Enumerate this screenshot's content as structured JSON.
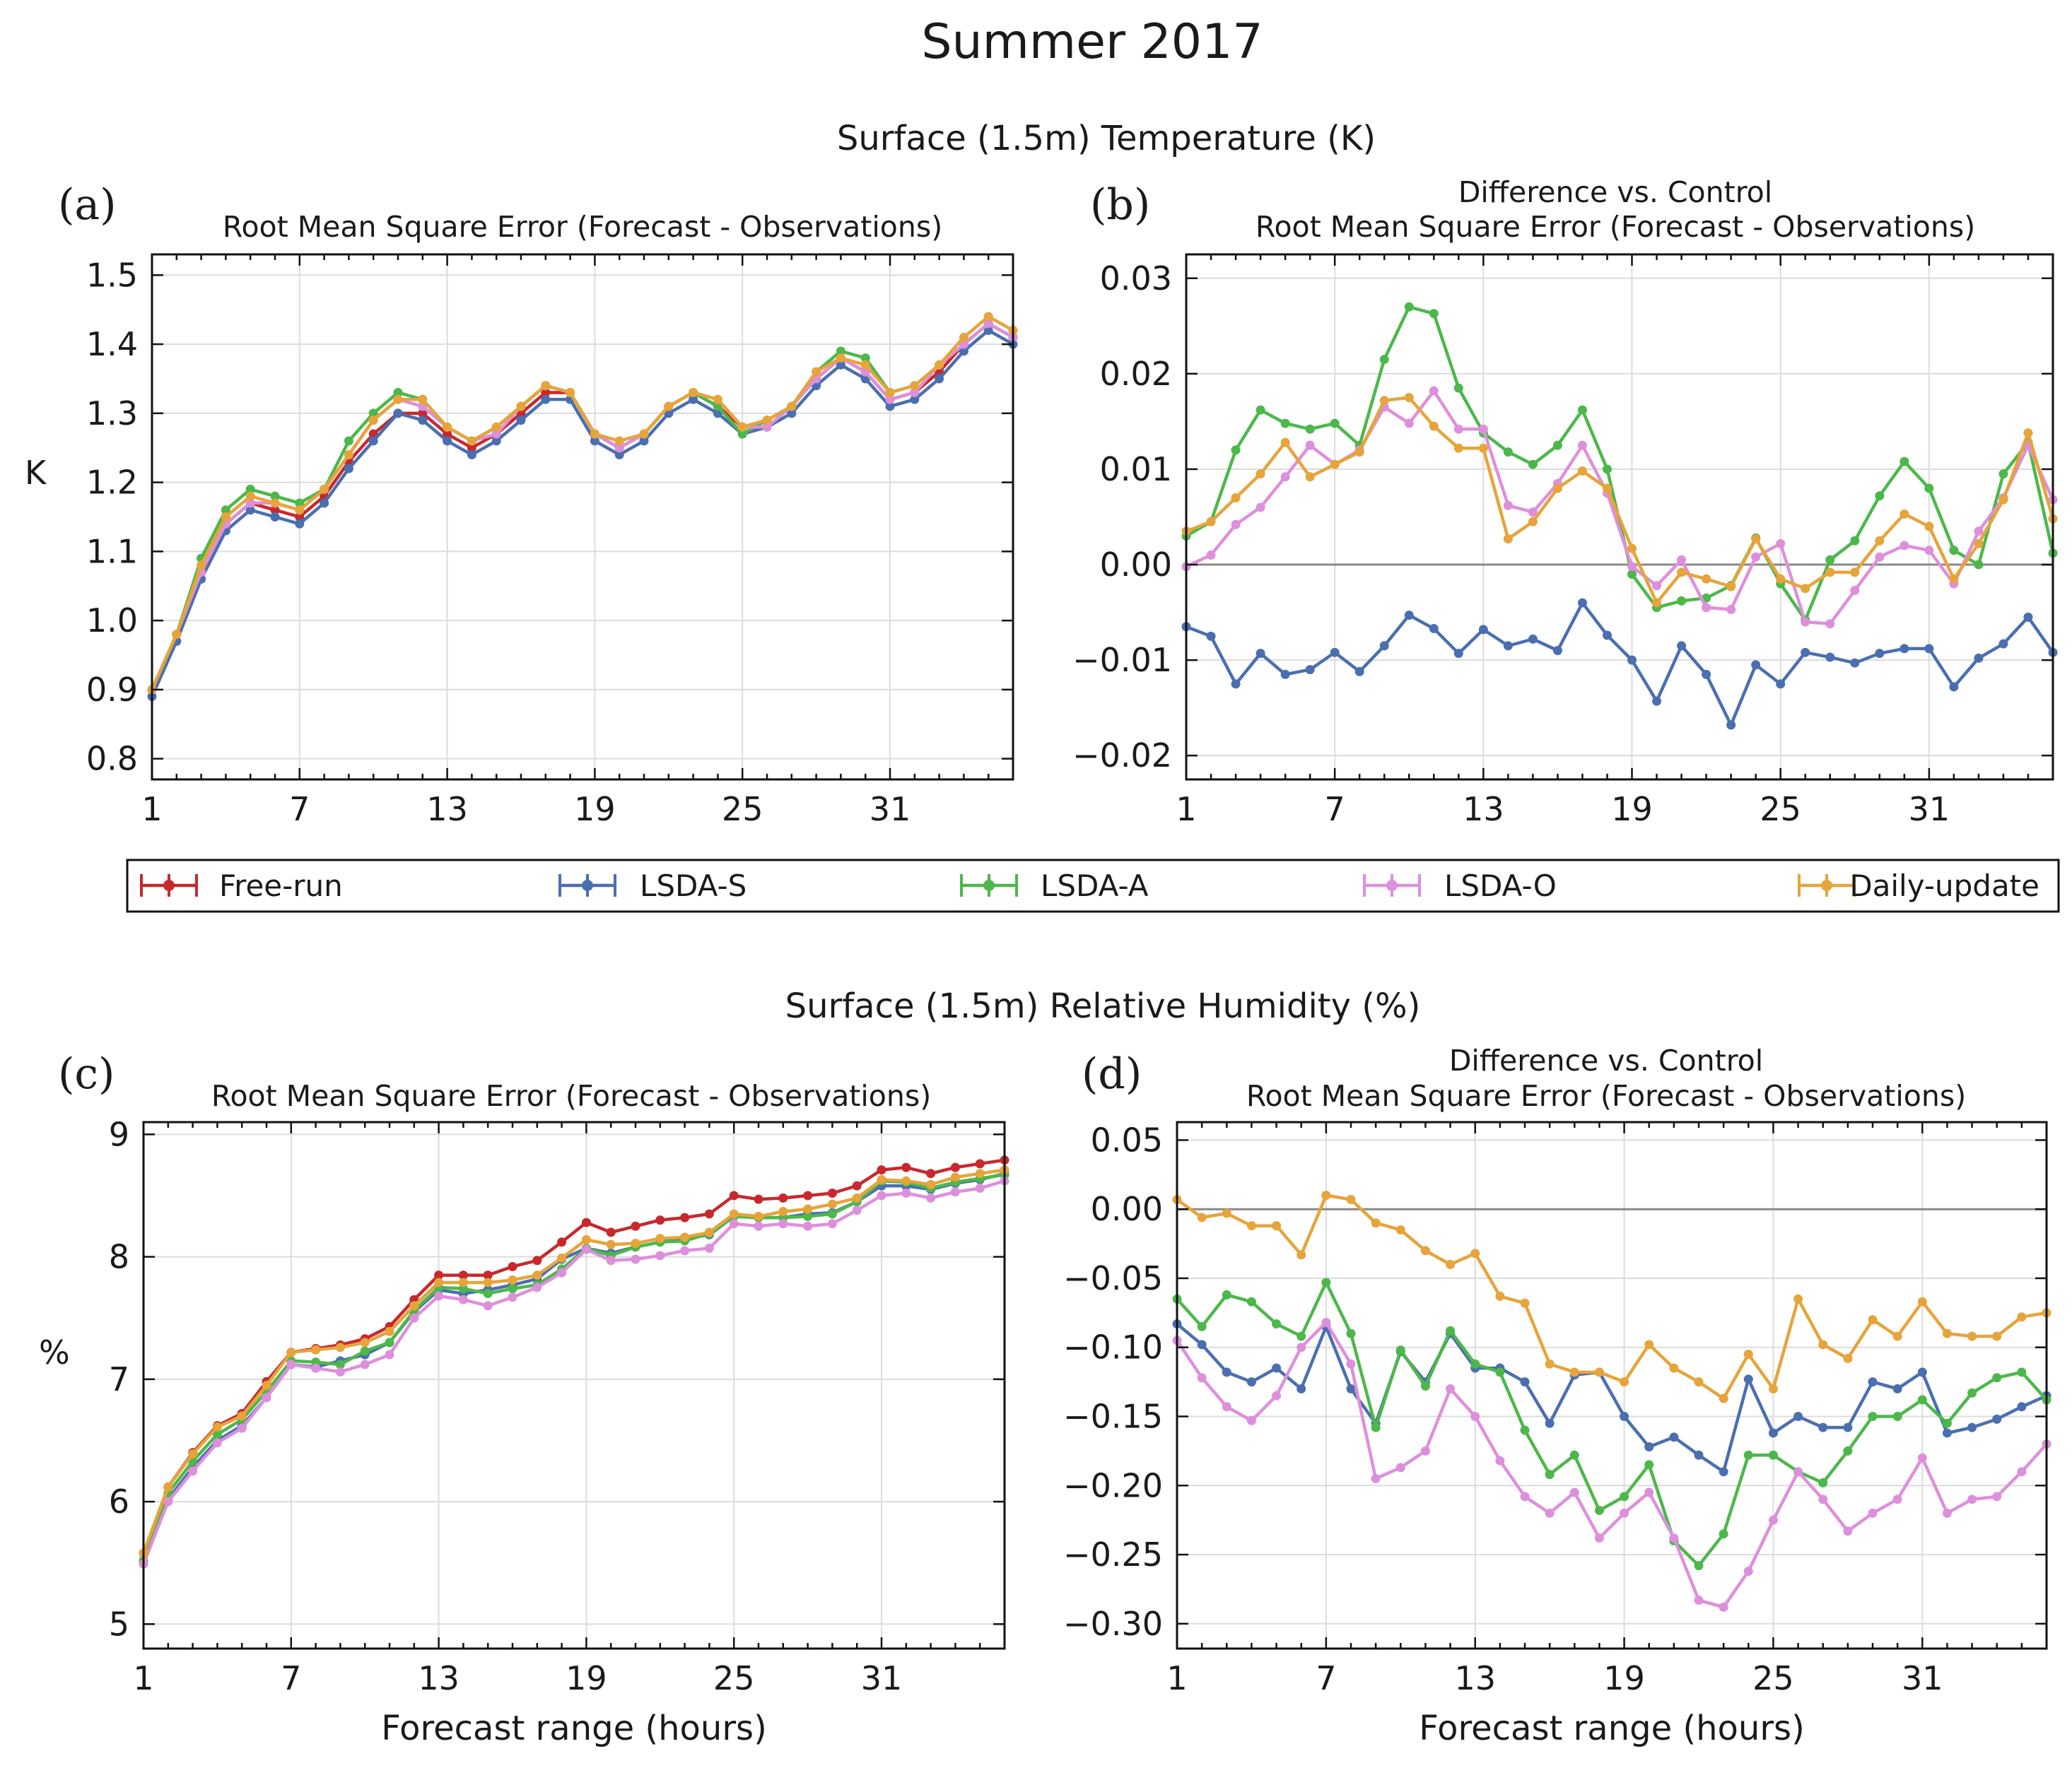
{
  "figure_title": "Summer 2017",
  "section_titles": {
    "temperature": "Surface (1.5m) Temperature (K)",
    "humidity": "Surface (1.5m) Relative Humidity (%)"
  },
  "legend": {
    "entries": [
      {
        "name": "Free-run",
        "color": "#c8282d"
      },
      {
        "name": "LSDA-S",
        "color": "#4a6fb0"
      },
      {
        "name": "LSDA-A",
        "color": "#4cb84a"
      },
      {
        "name": "LSDA-O",
        "color": "#de8fdc"
      },
      {
        "name": "Daily-update",
        "color": "#e6a43a"
      }
    ]
  },
  "chart_data": [
    {
      "panel": "(a)",
      "type": "line",
      "title": "Root Mean Square Error (Forecast - Observations)",
      "subtitle": "",
      "xlabel": "",
      "ylabel": "K",
      "xlim": [
        1,
        36
      ],
      "ylim": [
        0.77,
        1.53
      ],
      "xticks": [
        1,
        7,
        13,
        19,
        25,
        31
      ],
      "yticks": [
        0.8,
        0.9,
        1.0,
        1.1,
        1.2,
        1.3,
        1.4,
        1.5
      ],
      "ytick_labels": [
        "0.8",
        "0.9",
        "1.0",
        "1.1",
        "1.2",
        "1.3",
        "1.4",
        "1.5"
      ],
      "zero_line": false,
      "x": [
        1,
        2,
        3,
        4,
        5,
        6,
        7,
        8,
        9,
        10,
        11,
        12,
        13,
        14,
        15,
        16,
        17,
        18,
        19,
        20,
        21,
        22,
        23,
        24,
        25,
        26,
        27,
        28,
        29,
        30,
        31,
        32,
        33,
        34,
        35,
        36
      ],
      "series": [
        {
          "name": "Free-run",
          "values": [
            0.9,
            0.98,
            1.07,
            1.14,
            1.17,
            1.16,
            1.15,
            1.18,
            1.23,
            1.27,
            1.3,
            1.3,
            1.27,
            1.25,
            1.27,
            1.3,
            1.33,
            1.33,
            1.27,
            1.25,
            1.27,
            1.31,
            1.33,
            1.31,
            1.28,
            1.29,
            1.31,
            1.35,
            1.38,
            1.36,
            1.32,
            1.33,
            1.36,
            1.4,
            1.43,
            1.41
          ]
        },
        {
          "name": "LSDA-S",
          "values": [
            0.89,
            0.97,
            1.06,
            1.13,
            1.16,
            1.15,
            1.14,
            1.17,
            1.22,
            1.26,
            1.3,
            1.29,
            1.26,
            1.24,
            1.26,
            1.29,
            1.32,
            1.32,
            1.26,
            1.24,
            1.26,
            1.3,
            1.32,
            1.3,
            1.27,
            1.28,
            1.3,
            1.34,
            1.37,
            1.35,
            1.31,
            1.32,
            1.35,
            1.39,
            1.42,
            1.4
          ]
        },
        {
          "name": "LSDA-A",
          "values": [
            0.9,
            0.98,
            1.09,
            1.16,
            1.19,
            1.18,
            1.17,
            1.19,
            1.26,
            1.3,
            1.33,
            1.32,
            1.28,
            1.26,
            1.28,
            1.31,
            1.34,
            1.33,
            1.27,
            1.25,
            1.27,
            1.31,
            1.33,
            1.31,
            1.27,
            1.29,
            1.31,
            1.36,
            1.39,
            1.38,
            1.33,
            1.34,
            1.37,
            1.4,
            1.43,
            1.41
          ]
        },
        {
          "name": "LSDA-O",
          "values": [
            0.9,
            0.98,
            1.07,
            1.14,
            1.17,
            1.17,
            1.16,
            1.19,
            1.24,
            1.29,
            1.32,
            1.31,
            1.28,
            1.26,
            1.27,
            1.31,
            1.34,
            1.33,
            1.27,
            1.25,
            1.27,
            1.31,
            1.33,
            1.32,
            1.28,
            1.28,
            1.31,
            1.35,
            1.38,
            1.36,
            1.32,
            1.33,
            1.37,
            1.4,
            1.43,
            1.41
          ]
        },
        {
          "name": "Daily-update",
          "values": [
            0.9,
            0.98,
            1.08,
            1.15,
            1.18,
            1.17,
            1.16,
            1.19,
            1.24,
            1.29,
            1.32,
            1.32,
            1.28,
            1.26,
            1.28,
            1.31,
            1.34,
            1.33,
            1.27,
            1.26,
            1.27,
            1.31,
            1.33,
            1.32,
            1.28,
            1.29,
            1.31,
            1.36,
            1.38,
            1.37,
            1.33,
            1.34,
            1.37,
            1.41,
            1.44,
            1.42
          ]
        }
      ]
    },
    {
      "panel": "(b)",
      "type": "line",
      "title": "Root Mean Square Error (Forecast - Observations)",
      "subtitle": "Difference vs. Control",
      "xlabel": "",
      "ylabel": "",
      "xlim": [
        1,
        36
      ],
      "ylim": [
        -0.0225,
        0.0325
      ],
      "xticks": [
        1,
        7,
        13,
        19,
        25,
        31
      ],
      "yticks": [
        -0.02,
        -0.01,
        0.0,
        0.01,
        0.02,
        0.03
      ],
      "ytick_labels": [
        "−0.02",
        "−0.01",
        "0.00",
        "0.01",
        "0.02",
        "0.03"
      ],
      "zero_line": true,
      "x": [
        1,
        2,
        3,
        4,
        5,
        6,
        7,
        8,
        9,
        10,
        11,
        12,
        13,
        14,
        15,
        16,
        17,
        18,
        19,
        20,
        21,
        22,
        23,
        24,
        25,
        26,
        27,
        28,
        29,
        30,
        31,
        32,
        33,
        34,
        35,
        36
      ],
      "series": [
        {
          "name": "LSDA-S",
          "values": [
            -0.0065,
            -0.0075,
            -0.0125,
            -0.0093,
            -0.0115,
            -0.011,
            -0.0092,
            -0.0112,
            -0.0085,
            -0.0053,
            -0.0067,
            -0.0093,
            -0.0068,
            -0.0085,
            -0.0078,
            -0.009,
            -0.004,
            -0.0074,
            -0.01,
            -0.0143,
            -0.0085,
            -0.0115,
            -0.0168,
            -0.0105,
            -0.0125,
            -0.0092,
            -0.0097,
            -0.0103,
            -0.0093,
            -0.0088,
            -0.0088,
            -0.0128,
            -0.0098,
            -0.0083,
            -0.0055,
            -0.0092
          ]
        },
        {
          "name": "LSDA-A",
          "values": [
            0.003,
            0.0045,
            0.012,
            0.0162,
            0.0148,
            0.0142,
            0.0148,
            0.0125,
            0.0215,
            0.027,
            0.0263,
            0.0185,
            0.0138,
            0.0118,
            0.0105,
            0.0125,
            0.0162,
            0.01,
            -0.001,
            -0.0045,
            -0.0038,
            -0.0035,
            -0.0022,
            0.0028,
            -0.002,
            -0.0058,
            0.0005,
            0.0025,
            0.0072,
            0.0108,
            0.008,
            0.0015,
            0.0,
            0.0095,
            0.0128,
            0.0012
          ]
        },
        {
          "name": "LSDA-O",
          "values": [
            -0.0002,
            0.001,
            0.0042,
            0.006,
            0.0092,
            0.0125,
            0.0105,
            0.012,
            0.0165,
            0.0148,
            0.0182,
            0.0142,
            0.0142,
            0.0062,
            0.0055,
            0.0085,
            0.0125,
            0.0075,
            -0.0002,
            -0.0022,
            0.0005,
            -0.0045,
            -0.0047,
            0.0008,
            0.0022,
            -0.006,
            -0.0062,
            -0.0027,
            0.0008,
            0.002,
            0.0015,
            -0.002,
            0.0035,
            0.007,
            0.0125,
            0.0068
          ]
        },
        {
          "name": "Daily-update",
          "values": [
            0.0035,
            0.0045,
            0.007,
            0.0095,
            0.0128,
            0.0092,
            0.0105,
            0.0118,
            0.0172,
            0.0175,
            0.0145,
            0.0122,
            0.0122,
            0.0027,
            0.0045,
            0.008,
            0.0098,
            0.008,
            0.0017,
            -0.004,
            -0.0008,
            -0.0015,
            -0.0023,
            0.0027,
            -0.0015,
            -0.0025,
            -0.0008,
            -0.0008,
            0.0025,
            0.0053,
            0.004,
            -0.0015,
            0.0022,
            0.0068,
            0.0138,
            0.0048
          ]
        }
      ]
    },
    {
      "panel": "(c)",
      "type": "line",
      "title": "Root Mean Square Error (Forecast - Observations)",
      "subtitle": "",
      "xlabel": "Forecast range (hours)",
      "ylabel": "%",
      "xlim": [
        1,
        36
      ],
      "ylim": [
        4.8,
        9.1
      ],
      "xticks": [
        1,
        7,
        13,
        19,
        25,
        31
      ],
      "yticks": [
        5,
        6,
        7,
        8,
        9
      ],
      "ytick_labels": [
        "5",
        "6",
        "7",
        "8",
        "9"
      ],
      "zero_line": false,
      "x": [
        1,
        2,
        3,
        4,
        5,
        6,
        7,
        8,
        9,
        10,
        11,
        12,
        13,
        14,
        15,
        16,
        17,
        18,
        19,
        20,
        21,
        22,
        23,
        24,
        25,
        26,
        27,
        28,
        29,
        30,
        31,
        32,
        33,
        34,
        35,
        36
      ],
      "series": [
        {
          "name": "Free-run",
          "values": [
            5.58,
            6.12,
            6.4,
            6.62,
            6.72,
            6.98,
            7.22,
            7.25,
            7.28,
            7.33,
            7.43,
            7.65,
            7.85,
            7.85,
            7.85,
            7.92,
            7.97,
            8.12,
            8.28,
            8.2,
            8.25,
            8.3,
            8.32,
            8.35,
            8.5,
            8.47,
            8.48,
            8.5,
            8.52,
            8.58,
            8.71,
            8.73,
            8.68,
            8.73,
            8.76,
            8.79
          ]
        },
        {
          "name": "LSDA-S",
          "values": [
            5.5,
            6.02,
            6.28,
            6.5,
            6.62,
            6.85,
            7.12,
            7.1,
            7.15,
            7.2,
            7.3,
            7.55,
            7.73,
            7.7,
            7.73,
            7.77,
            7.82,
            7.98,
            8.07,
            8.03,
            8.08,
            8.12,
            8.15,
            8.18,
            8.33,
            8.32,
            8.32,
            8.35,
            8.36,
            8.45,
            8.58,
            8.58,
            8.55,
            8.6,
            8.63,
            8.68
          ]
        },
        {
          "name": "LSDA-A",
          "values": [
            5.52,
            6.07,
            6.33,
            6.55,
            6.67,
            6.9,
            7.15,
            7.14,
            7.12,
            7.23,
            7.3,
            7.56,
            7.75,
            7.74,
            7.7,
            7.74,
            7.77,
            7.9,
            8.07,
            8.01,
            8.08,
            8.12,
            8.13,
            8.19,
            8.33,
            8.32,
            8.32,
            8.33,
            8.35,
            8.45,
            8.62,
            8.61,
            8.56,
            8.61,
            8.64,
            8.67
          ]
        },
        {
          "name": "LSDA-O",
          "values": [
            5.49,
            6.0,
            6.25,
            6.48,
            6.6,
            6.85,
            7.12,
            7.09,
            7.06,
            7.12,
            7.2,
            7.5,
            7.68,
            7.65,
            7.6,
            7.67,
            7.75,
            7.87,
            8.06,
            7.97,
            7.98,
            8.01,
            8.05,
            8.07,
            8.27,
            8.25,
            8.27,
            8.25,
            8.27,
            8.38,
            8.5,
            8.52,
            8.48,
            8.53,
            8.56,
            8.62
          ]
        },
        {
          "name": "Daily-update",
          "values": [
            5.58,
            6.12,
            6.39,
            6.61,
            6.7,
            6.95,
            7.22,
            7.24,
            7.26,
            7.3,
            7.39,
            7.6,
            7.79,
            7.79,
            7.79,
            7.81,
            7.85,
            7.99,
            8.14,
            8.1,
            8.11,
            8.15,
            8.16,
            8.2,
            8.35,
            8.33,
            8.37,
            8.39,
            8.43,
            8.48,
            8.63,
            8.62,
            8.59,
            8.65,
            8.68,
            8.71
          ]
        }
      ]
    },
    {
      "panel": "(d)",
      "type": "line",
      "title": "Root Mean Square Error (Forecast - Observations)",
      "subtitle": "Difference vs. Control",
      "xlabel": "Forecast range (hours)",
      "ylabel": "",
      "xlim": [
        1,
        36
      ],
      "ylim": [
        -0.318,
        0.063
      ],
      "xticks": [
        1,
        7,
        13,
        19,
        25,
        31
      ],
      "yticks": [
        -0.3,
        -0.25,
        -0.2,
        -0.15,
        -0.1,
        -0.05,
        0.0,
        0.05
      ],
      "ytick_labels": [
        "−0.30",
        "−0.25",
        "−0.20",
        "−0.15",
        "−0.10",
        "−0.05",
        "0.00",
        "0.05"
      ],
      "zero_line": true,
      "x": [
        1,
        2,
        3,
        4,
        5,
        6,
        7,
        8,
        9,
        10,
        11,
        12,
        13,
        14,
        15,
        16,
        17,
        18,
        19,
        20,
        21,
        22,
        23,
        24,
        25,
        26,
        27,
        28,
        29,
        30,
        31,
        32,
        33,
        34,
        35,
        36
      ],
      "series": [
        {
          "name": "LSDA-S",
          "values": [
            -0.083,
            -0.098,
            -0.118,
            -0.125,
            -0.115,
            -0.13,
            -0.085,
            -0.13,
            -0.155,
            -0.103,
            -0.125,
            -0.09,
            -0.115,
            -0.115,
            -0.125,
            -0.155,
            -0.12,
            -0.118,
            -0.15,
            -0.172,
            -0.165,
            -0.178,
            -0.19,
            -0.123,
            -0.162,
            -0.15,
            -0.158,
            -0.158,
            -0.125,
            -0.13,
            -0.118,
            -0.162,
            -0.158,
            -0.152,
            -0.143,
            -0.135
          ]
        },
        {
          "name": "LSDA-A",
          "values": [
            -0.065,
            -0.085,
            -0.062,
            -0.067,
            -0.083,
            -0.092,
            -0.053,
            -0.09,
            -0.158,
            -0.102,
            -0.128,
            -0.088,
            -0.112,
            -0.118,
            -0.16,
            -0.192,
            -0.178,
            -0.218,
            -0.208,
            -0.185,
            -0.24,
            -0.258,
            -0.235,
            -0.178,
            -0.178,
            -0.19,
            -0.198,
            -0.175,
            -0.15,
            -0.15,
            -0.138,
            -0.155,
            -0.133,
            -0.122,
            -0.118,
            -0.138
          ]
        },
        {
          "name": "LSDA-O",
          "values": [
            -0.095,
            -0.122,
            -0.143,
            -0.153,
            -0.135,
            -0.1,
            -0.082,
            -0.112,
            -0.195,
            -0.187,
            -0.175,
            -0.13,
            -0.15,
            -0.182,
            -0.208,
            -0.22,
            -0.205,
            -0.238,
            -0.22,
            -0.205,
            -0.238,
            -0.283,
            -0.288,
            -0.262,
            -0.225,
            -0.19,
            -0.21,
            -0.233,
            -0.22,
            -0.21,
            -0.18,
            -0.22,
            -0.21,
            -0.208,
            -0.19,
            -0.17
          ]
        },
        {
          "name": "Daily-update",
          "values": [
            0.007,
            -0.006,
            -0.003,
            -0.012,
            -0.012,
            -0.033,
            0.01,
            0.007,
            -0.01,
            -0.015,
            -0.03,
            -0.04,
            -0.032,
            -0.063,
            -0.068,
            -0.112,
            -0.118,
            -0.118,
            -0.125,
            -0.098,
            -0.115,
            -0.125,
            -0.137,
            -0.105,
            -0.13,
            -0.065,
            -0.098,
            -0.108,
            -0.08,
            -0.092,
            -0.067,
            -0.09,
            -0.092,
            -0.092,
            -0.078,
            -0.075
          ]
        }
      ]
    }
  ]
}
